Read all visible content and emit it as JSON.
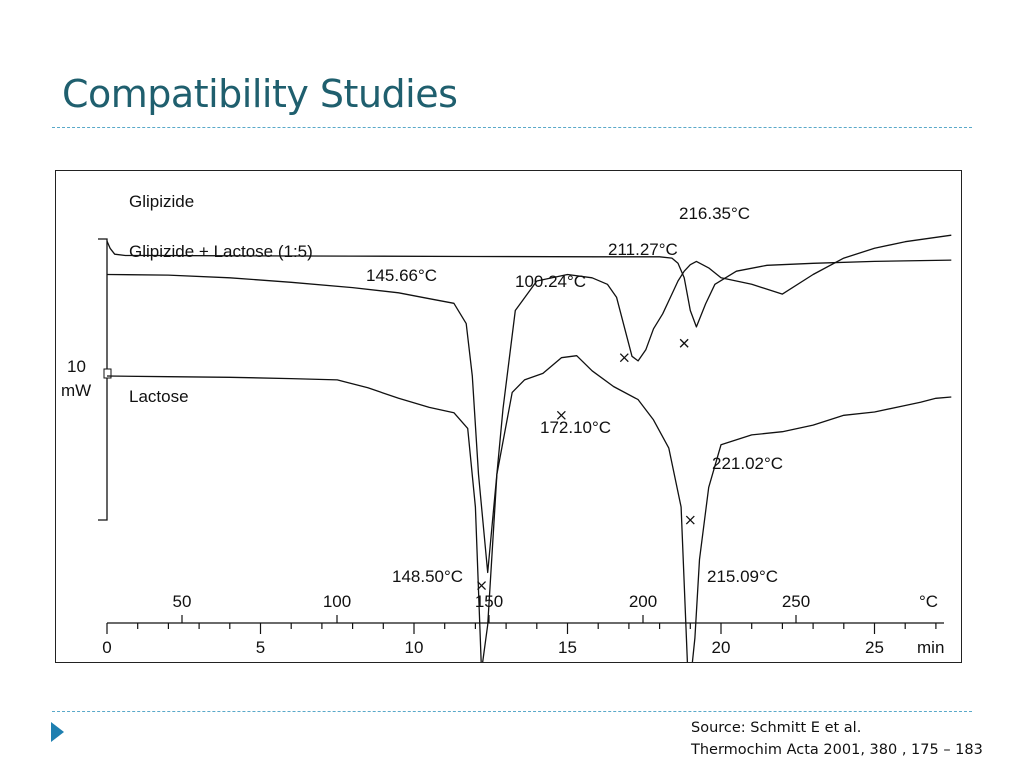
{
  "slide": {
    "title": "Compatibility Studies",
    "source_line1": "Source: Schmitt E et al.",
    "source_line2": "Thermochim Acta 2001, 380 , 175 – 183",
    "accent_color": "#1f5f6e",
    "rule_color": "#5aa9c9",
    "bullet_color": "#1e7fb0",
    "bullet_icon": "triangle-right-icon"
  },
  "chart_data": {
    "type": "line",
    "title": "",
    "xlabel": "min",
    "x2label": "°C",
    "xlim": [
      0,
      27.5
    ],
    "x_ticks": [
      0,
      5,
      10,
      15,
      20,
      25
    ],
    "x_tick_labels": [
      "0",
      "5",
      "10",
      "15",
      "20",
      "25"
    ],
    "temp_ticks": [
      50,
      100,
      150,
      200,
      250
    ],
    "temp_tick_labels": [
      "50",
      "100",
      "150",
      "200",
      "250"
    ],
    "scale_bar": {
      "label_value": "10",
      "label_unit": "mW"
    },
    "grid": false,
    "legend": "inline labels",
    "series": [
      {
        "name": "Glipizide",
        "x": [
          0,
          0.1,
          0.25,
          0.6,
          1.5,
          4,
          8,
          12,
          16,
          18,
          18.4,
          18.6,
          18.8,
          19.0,
          19.2,
          19.5,
          19.8,
          20.5,
          21.5,
          23,
          25,
          27.5
        ],
        "y": [
          20.6,
          19.5,
          18.6,
          18.4,
          18.4,
          18.35,
          18.3,
          18.25,
          18.2,
          18.2,
          18.0,
          17.2,
          15.0,
          10.0,
          7.5,
          11.0,
          14.0,
          16.0,
          16.9,
          17.2,
          17.5,
          17.7
        ]
      },
      {
        "name": "Glipizide + Lactose (1:5)",
        "x": [
          0,
          2,
          4,
          6,
          8,
          9.5,
          10.5,
          11.3,
          11.7,
          11.9,
          12.1,
          12.4,
          12.6,
          12.9,
          13.3,
          14.0,
          15.0,
          15.8,
          16.3,
          16.6,
          16.85,
          17.1,
          17.3,
          17.55,
          17.8,
          18.1,
          18.4,
          18.6,
          18.8,
          19.0,
          19.2,
          19.6,
          20.0,
          21.0,
          22.0,
          23.0,
          24.0,
          25.0,
          26.0,
          27.5
        ],
        "y": [
          15.5,
          15.4,
          15.0,
          14.3,
          13.5,
          12.7,
          11.8,
          11.1,
          8.0,
          0,
          -15.0,
          -30.0,
          -20.0,
          -5.0,
          10.0,
          14.5,
          15.5,
          15.0,
          14.0,
          12.0,
          7.5,
          3.0,
          2.3,
          4.0,
          7.2,
          9.5,
          12.5,
          14.5,
          16.0,
          17.0,
          17.5,
          16.5,
          15.0,
          14.0,
          12.5,
          15.5,
          18.0,
          19.5,
          20.5,
          21.5
        ]
      },
      {
        "name": "Lactose",
        "x": [
          0,
          2,
          4,
          6,
          7.5,
          8.5,
          9.5,
          10.5,
          11.3,
          11.75,
          12.0,
          12.2,
          12.4,
          12.7,
          13.2,
          13.6,
          14.2,
          14.8,
          15.3,
          15.8,
          16.5,
          17.3,
          17.8,
          18.3,
          18.7,
          18.95,
          19.15,
          19.3,
          19.6,
          20.0,
          21.0,
          22.0,
          23.0,
          24.0,
          25.0,
          26.0,
          26.5,
          27.0,
          27.5
        ],
        "y": [
          0,
          -0.1,
          -0.2,
          -0.4,
          -0.6,
          -1.8,
          -3.4,
          -4.8,
          -5.6,
          -8.0,
          -20.0,
          -45.0,
          -38.0,
          -15.0,
          -2.5,
          -0.6,
          0.4,
          2.8,
          3.1,
          0.8,
          -1.6,
          -3.6,
          -6.7,
          -11.0,
          -20.0,
          -49.0,
          -40.0,
          -28.0,
          -17.0,
          -10.5,
          -9.0,
          -8.5,
          -7.5,
          -6.0,
          -5.5,
          -4.5,
          -4.0,
          -3.4,
          -3.2
        ]
      }
    ],
    "annotations": [
      {
        "text": "216.35°C",
        "x": 18.65,
        "y": 17.5,
        "series": "Glipizide"
      },
      {
        "text": "145.66°C",
        "x": 11.8,
        "y": 11.0,
        "series": "Glipizide + Lactose (1:5)"
      },
      {
        "text": "100.24°C",
        "x": 15.1,
        "y": 10.2,
        "series": "Glipizide + Lactose (1:5)"
      },
      {
        "text": "211.27°C",
        "x": 16.0,
        "y": 14.2,
        "series": "Glipizide + Lactose (1:5)"
      },
      {
        "text": "172.10°C",
        "x": 14.6,
        "y": -6.0,
        "series": "Lactose"
      },
      {
        "text": "148.50°C",
        "x": 12.3,
        "y": -37.0,
        "series": "Lactose"
      },
      {
        "text": "215.09°C",
        "x": 19.0,
        "y": -37.0,
        "series": "Lactose"
      },
      {
        "text": "221.02°C",
        "x": 19.6,
        "y": -15.5,
        "series": "Glipizide"
      }
    ],
    "peak_marks": [
      {
        "x": 12.2,
        "y": -32.0
      },
      {
        "x": 12.6,
        "y": -45.0
      },
      {
        "x": 16.85,
        "y": 2.8
      },
      {
        "x": 18.8,
        "y": 5.0
      },
      {
        "x": 19.0,
        "y": -22.0
      },
      {
        "x": 19.0,
        "y": -49.0
      },
      {
        "x": 14.8,
        "y": -6.0
      }
    ]
  }
}
